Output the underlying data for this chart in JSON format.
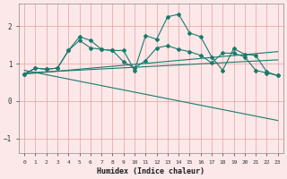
{
  "xlabel": "Humidex (Indice chaleur)",
  "bg_color": "#fce8e8",
  "line_color": "#1a7a6e",
  "grid_color": "#e8a0a0",
  "xlim": [
    -0.5,
    23.5
  ],
  "ylim": [
    -1.4,
    2.6
  ],
  "xticks": [
    0,
    1,
    2,
    3,
    4,
    5,
    6,
    7,
    8,
    9,
    10,
    11,
    12,
    13,
    14,
    15,
    16,
    17,
    18,
    19,
    20,
    21,
    22,
    23
  ],
  "yticks": [
    -1,
    0,
    1,
    2
  ],
  "main_x": [
    0,
    1,
    2,
    3,
    4,
    5,
    6,
    7,
    8,
    9,
    10,
    11,
    12,
    13,
    14,
    15,
    16,
    17,
    18,
    19,
    20,
    21,
    22,
    23
  ],
  "main_y": [
    0.72,
    0.88,
    0.85,
    0.88,
    1.35,
    1.72,
    1.62,
    1.38,
    1.35,
    1.35,
    0.82,
    1.75,
    1.65,
    2.25,
    2.32,
    1.82,
    1.72,
    1.18,
    0.82,
    1.4,
    1.25,
    1.22,
    0.78,
    0.68
  ],
  "line2_x": [
    0,
    1,
    2,
    3,
    4,
    5,
    6,
    7,
    8,
    9,
    10,
    11,
    12,
    13,
    14,
    15,
    16,
    17,
    18,
    19,
    20,
    21,
    22,
    23
  ],
  "line2_y": [
    0.72,
    0.88,
    0.85,
    0.88,
    1.35,
    1.62,
    1.42,
    1.38,
    1.35,
    1.05,
    0.88,
    1.08,
    1.42,
    1.48,
    1.38,
    1.32,
    1.22,
    1.02,
    1.28,
    1.28,
    1.18,
    0.82,
    0.75,
    0.68
  ],
  "trend1_y_start": 0.72,
  "trend1_y_end": 1.32,
  "trend2_y_start": 0.75,
  "trend2_y_end": 1.1,
  "trend3_y_start": 0.82,
  "trend3_y_end": -0.52
}
